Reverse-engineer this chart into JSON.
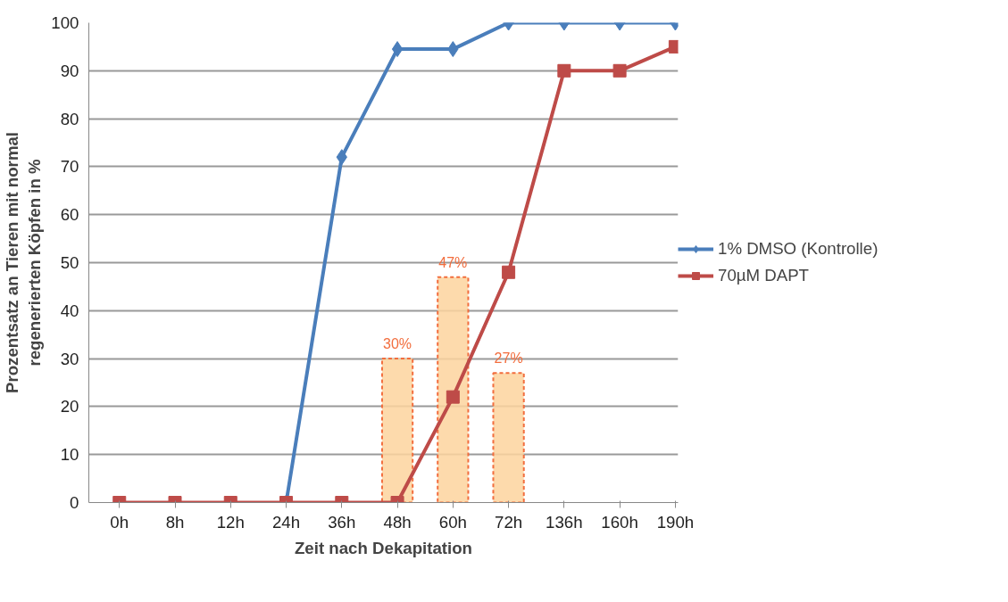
{
  "chart_data": {
    "type": "line",
    "xlabel": "Zeit nach Dekapitation",
    "ylabel": "Prozentsatz an Tieren mit normal regenerierten Köpfen in %",
    "categories": [
      "0h",
      "8h",
      "12h",
      "24h",
      "36h",
      "48h",
      "60h",
      "72h",
      "136h",
      "160h",
      "190h"
    ],
    "ylim": [
      0,
      100
    ],
    "yticks": [
      0,
      10,
      20,
      30,
      40,
      50,
      60,
      70,
      80,
      90,
      100
    ],
    "grid": "y",
    "legend": "right",
    "series": [
      {
        "type": "bar",
        "color": "#fdd49e",
        "values": [
          null,
          null,
          null,
          null,
          null,
          30,
          47,
          27,
          null,
          null,
          null
        ],
        "value_labels": [
          null,
          null,
          null,
          null,
          null,
          "30%",
          "47%",
          "27%",
          null,
          null,
          null
        ]
      },
      {
        "name": "1% DMSO (Kontrolle)",
        "color": "#4a7ebb",
        "marker": "diamond",
        "values": [
          null,
          null,
          null,
          0,
          72,
          94.5,
          94.5,
          100,
          100,
          100,
          100
        ]
      },
      {
        "name": "70µM DAPT",
        "color": "#be4b48",
        "marker": "square",
        "values": [
          0,
          0,
          0,
          0,
          0,
          0,
          22,
          48,
          90,
          90,
          95
        ]
      }
    ]
  }
}
